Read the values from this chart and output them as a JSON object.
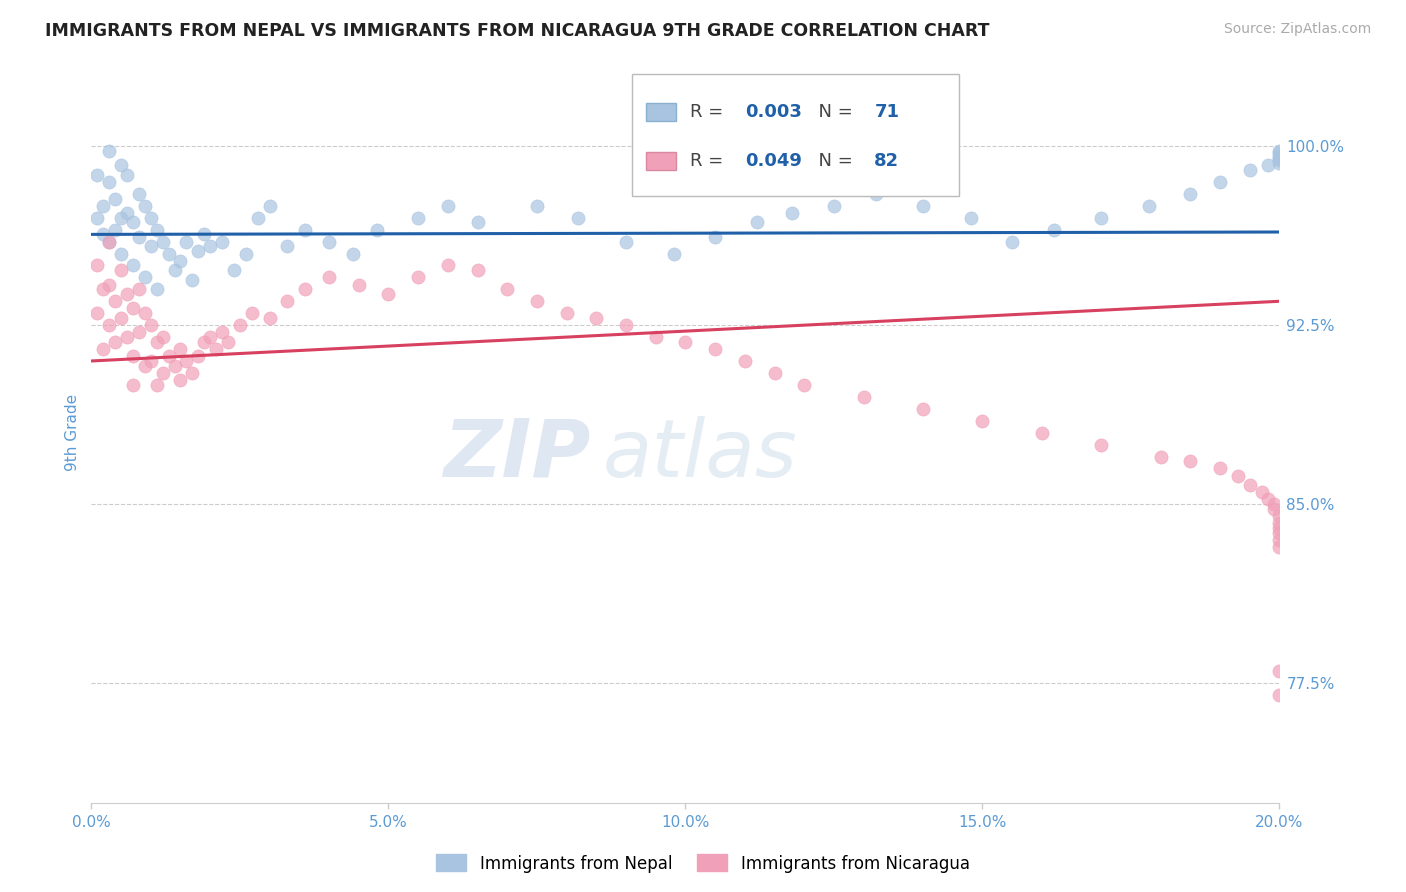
{
  "title": "IMMIGRANTS FROM NEPAL VS IMMIGRANTS FROM NICARAGUA 9TH GRADE CORRELATION CHART",
  "source_text": "Source: ZipAtlas.com",
  "ylabel": "9th Grade",
  "right_ytick_labels": [
    "100.0%",
    "92.5%",
    "85.0%",
    "77.5%"
  ],
  "right_ytick_values": [
    1.0,
    0.925,
    0.85,
    0.775
  ],
  "xlim": [
    0.0,
    0.2
  ],
  "ylim": [
    0.725,
    1.035
  ],
  "xtick_labels": [
    "0.0%",
    "5.0%",
    "10.0%",
    "15.0%",
    "20.0%"
  ],
  "xtick_values": [
    0.0,
    0.05,
    0.1,
    0.15,
    0.2
  ],
  "nepal_color": "#a8c4e0",
  "nicaragua_color": "#f0a0b8",
  "nepal_line_color": "#2060a8",
  "nicaragua_line_color": "#d84060",
  "nepal_R": 0.003,
  "nepal_N": 71,
  "nicaragua_R": 0.049,
  "nicaragua_N": 82,
  "nepal_label": "Immigrants from Nepal",
  "nicaragua_label": "Immigrants from Nicaragua",
  "watermark_zip": "ZIP",
  "watermark_atlas": "atlas",
  "background_color": "#ffffff",
  "title_color": "#222222",
  "axis_color": "#5b9bd5",
  "nepal_scatter_x": [
    0.001,
    0.001,
    0.002,
    0.002,
    0.003,
    0.003,
    0.003,
    0.004,
    0.004,
    0.005,
    0.005,
    0.005,
    0.006,
    0.006,
    0.007,
    0.007,
    0.008,
    0.008,
    0.009,
    0.009,
    0.01,
    0.01,
    0.011,
    0.011,
    0.012,
    0.013,
    0.014,
    0.015,
    0.016,
    0.017,
    0.018,
    0.019,
    0.02,
    0.022,
    0.024,
    0.026,
    0.028,
    0.03,
    0.033,
    0.036,
    0.04,
    0.044,
    0.048,
    0.055,
    0.06,
    0.065,
    0.075,
    0.082,
    0.09,
    0.098,
    0.105,
    0.112,
    0.118,
    0.125,
    0.132,
    0.14,
    0.148,
    0.155,
    0.162,
    0.17,
    0.178,
    0.185,
    0.19,
    0.195,
    0.198,
    0.2,
    0.2,
    0.2,
    0.2,
    0.2,
    0.2
  ],
  "nepal_scatter_y": [
    0.988,
    0.97,
    0.975,
    0.963,
    0.998,
    0.985,
    0.96,
    0.978,
    0.965,
    0.992,
    0.97,
    0.955,
    0.988,
    0.972,
    0.968,
    0.95,
    0.98,
    0.962,
    0.975,
    0.945,
    0.97,
    0.958,
    0.965,
    0.94,
    0.96,
    0.955,
    0.948,
    0.952,
    0.96,
    0.944,
    0.956,
    0.963,
    0.958,
    0.96,
    0.948,
    0.955,
    0.97,
    0.975,
    0.958,
    0.965,
    0.96,
    0.955,
    0.965,
    0.97,
    0.975,
    0.968,
    0.975,
    0.97,
    0.96,
    0.955,
    0.962,
    0.968,
    0.972,
    0.975,
    0.98,
    0.975,
    0.97,
    0.96,
    0.965,
    0.97,
    0.975,
    0.98,
    0.985,
    0.99,
    0.992,
    0.993,
    0.996,
    0.997,
    0.994,
    0.995,
    0.998
  ],
  "nicaragua_scatter_x": [
    0.001,
    0.001,
    0.002,
    0.002,
    0.003,
    0.003,
    0.003,
    0.004,
    0.004,
    0.005,
    0.005,
    0.006,
    0.006,
    0.007,
    0.007,
    0.007,
    0.008,
    0.008,
    0.009,
    0.009,
    0.01,
    0.01,
    0.011,
    0.011,
    0.012,
    0.012,
    0.013,
    0.014,
    0.015,
    0.015,
    0.016,
    0.017,
    0.018,
    0.019,
    0.02,
    0.021,
    0.022,
    0.023,
    0.025,
    0.027,
    0.03,
    0.033,
    0.036,
    0.04,
    0.045,
    0.05,
    0.055,
    0.06,
    0.065,
    0.07,
    0.075,
    0.08,
    0.085,
    0.09,
    0.095,
    0.1,
    0.105,
    0.11,
    0.115,
    0.12,
    0.13,
    0.14,
    0.15,
    0.16,
    0.17,
    0.18,
    0.185,
    0.19,
    0.193,
    0.195,
    0.197,
    0.198,
    0.199,
    0.199,
    0.2,
    0.2,
    0.2,
    0.2,
    0.2,
    0.2,
    0.2,
    0.2
  ],
  "nicaragua_scatter_y": [
    0.95,
    0.93,
    0.94,
    0.915,
    0.96,
    0.942,
    0.925,
    0.935,
    0.918,
    0.948,
    0.928,
    0.938,
    0.92,
    0.932,
    0.912,
    0.9,
    0.94,
    0.922,
    0.93,
    0.908,
    0.925,
    0.91,
    0.918,
    0.9,
    0.92,
    0.905,
    0.912,
    0.908,
    0.915,
    0.902,
    0.91,
    0.905,
    0.912,
    0.918,
    0.92,
    0.915,
    0.922,
    0.918,
    0.925,
    0.93,
    0.928,
    0.935,
    0.94,
    0.945,
    0.942,
    0.938,
    0.945,
    0.95,
    0.948,
    0.94,
    0.935,
    0.93,
    0.928,
    0.925,
    0.92,
    0.918,
    0.915,
    0.91,
    0.905,
    0.9,
    0.895,
    0.89,
    0.885,
    0.88,
    0.875,
    0.87,
    0.868,
    0.865,
    0.862,
    0.858,
    0.855,
    0.852,
    0.85,
    0.848,
    0.845,
    0.842,
    0.84,
    0.838,
    0.835,
    0.832,
    0.78,
    0.77
  ],
  "nepal_trendline_x": [
    0.0,
    0.2
  ],
  "nepal_trendline_y": [
    0.963,
    0.964
  ],
  "nicaragua_trendline_x": [
    0.0,
    0.2
  ],
  "nicaragua_trendline_y": [
    0.91,
    0.935
  ]
}
